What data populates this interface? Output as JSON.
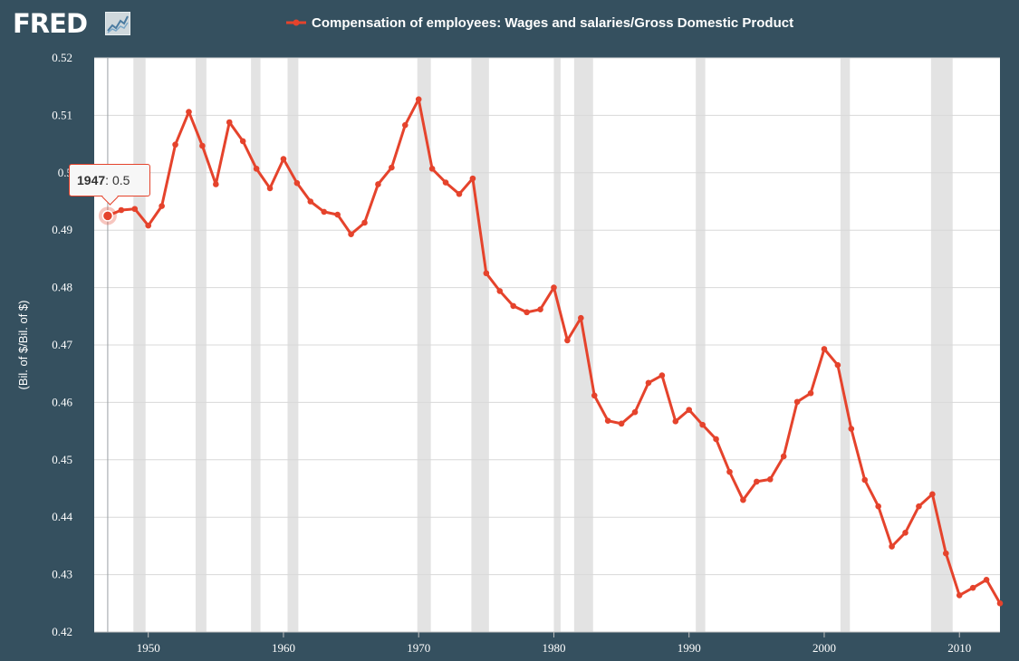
{
  "header": {
    "logo_text": "FRED",
    "logo_icon": "line-chart-icon"
  },
  "colors": {
    "background": "#35505f",
    "plot_background": "#ffffff",
    "series": "#e5432c",
    "recession": "#e3e3e3",
    "grid": "#d8d8d8"
  },
  "tooltip": {
    "year": "1947",
    "sep": ": ",
    "value": "0.5"
  },
  "chart_data": {
    "type": "line",
    "title": "",
    "xlabel": "",
    "ylabel": "(Bil. of $/Bil. of $)",
    "xlim": [
      1946,
      2013
    ],
    "ylim": [
      0.42,
      0.52
    ],
    "grid": true,
    "legend": "top-center",
    "x_ticks": [
      1950,
      1960,
      1970,
      1980,
      1990,
      2000,
      2010
    ],
    "y_ticks": [
      "0.42",
      "0.43",
      "0.44",
      "0.45",
      "0.46",
      "0.47",
      "0.48",
      "0.49",
      "0.5",
      "0.51",
      "0.52"
    ],
    "recessions": [
      [
        1948.9,
        1949.8
      ],
      [
        1953.5,
        1954.3
      ],
      [
        1957.6,
        1958.3
      ],
      [
        1960.3,
        1961.1
      ],
      [
        1969.9,
        1970.9
      ],
      [
        1973.9,
        1975.2
      ],
      [
        1980.0,
        1980.5
      ],
      [
        1981.5,
        1982.9
      ],
      [
        1990.5,
        1991.2
      ],
      [
        2001.2,
        2001.9
      ],
      [
        2007.9,
        2009.5
      ]
    ],
    "series": [
      {
        "name": "Compensation of employees: Wages and salaries/Gross Domestic Product",
        "x": [
          1947,
          1948,
          1949,
          1950,
          1951,
          1952,
          1953,
          1954,
          1955,
          1956,
          1957,
          1958,
          1959,
          1960,
          1961,
          1962,
          1963,
          1964,
          1965,
          1966,
          1967,
          1968,
          1969,
          1970,
          1971,
          1972,
          1973,
          1974,
          1975,
          1976,
          1977,
          1978,
          1979,
          1980,
          1981,
          1982,
          1983,
          1984,
          1985,
          1986,
          1987,
          1988,
          1989,
          1990,
          1991,
          1992,
          1993,
          1994,
          1995,
          1996,
          1997,
          1998,
          1999,
          2000,
          2001,
          2002,
          2003,
          2004,
          2005,
          2006,
          2007,
          2008,
          2009,
          2010,
          2011,
          2012,
          2013
        ],
        "values": [
          0.4925,
          0.4935,
          0.4937,
          0.4908,
          0.4942,
          0.5049,
          0.5106,
          0.5047,
          0.498,
          0.5088,
          0.5055,
          0.5007,
          0.4973,
          0.5024,
          0.4982,
          0.495,
          0.4932,
          0.4927,
          0.4893,
          0.4913,
          0.498,
          0.5009,
          0.5083,
          0.5128,
          0.5007,
          0.4983,
          0.4963,
          0.499,
          0.4825,
          0.4794,
          0.4768,
          0.4757,
          0.4762,
          0.48,
          0.4708,
          0.4747,
          0.4612,
          0.4568,
          0.4563,
          0.4583,
          0.4634,
          0.4647,
          0.4567,
          0.4587,
          0.4561,
          0.4536,
          0.4479,
          0.443,
          0.4462,
          0.4466,
          0.4506,
          0.4601,
          0.4616,
          0.4693,
          0.4665,
          0.4554,
          0.4465,
          0.4419,
          0.4349,
          0.4373,
          0.4419,
          0.444,
          0.4337,
          0.4264,
          0.4277,
          0.4291,
          0.425
        ]
      }
    ]
  }
}
